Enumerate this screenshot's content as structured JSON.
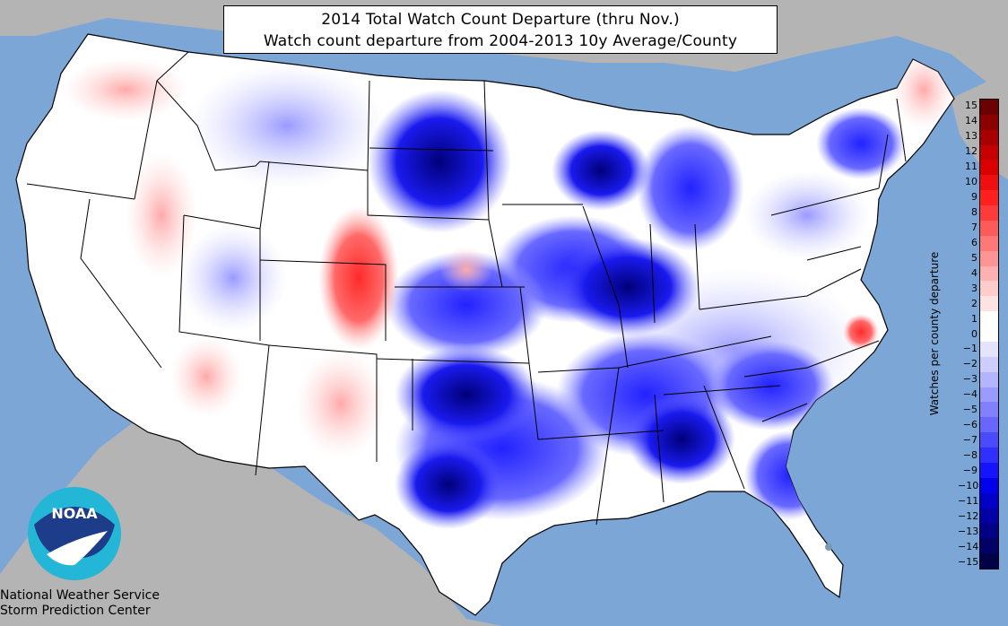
{
  "title": {
    "line1": "2014 Total Watch Count Departure (thru Nov.)",
    "line2": "Watch count departure from 2004-2013 10y Average/County"
  },
  "colorbar": {
    "label": "Watches per county departure",
    "ticks": [
      "15",
      "14",
      "13",
      "12",
      "11",
      "10",
      "9",
      "8",
      "7",
      "6",
      "5",
      "4",
      "3",
      "2",
      "1",
      "0",
      "−1",
      "−2",
      "−3",
      "−4",
      "−5",
      "−6",
      "−7",
      "−8",
      "−9",
      "−10",
      "−11",
      "−12",
      "−13",
      "−14",
      "−15"
    ],
    "colors": [
      "#6b0000",
      "#8b0000",
      "#a80000",
      "#c40000",
      "#db0000",
      "#ee1010",
      "#ff2020",
      "#ff3a3a",
      "#ff5a5a",
      "#ff7777",
      "#ff9494",
      "#ffb0b0",
      "#ffcccc",
      "#ffe2e2",
      "#ffffff",
      "#ffffff",
      "#e4e4ff",
      "#cdcdff",
      "#b4b4ff",
      "#9b9bff",
      "#8181ff",
      "#6767ff",
      "#4a4aff",
      "#2f2fff",
      "#1414ff",
      "#0000ea",
      "#0000c8",
      "#0000a6",
      "#000086",
      "#000066",
      "#000046"
    ]
  },
  "logo": {
    "text": "NOAA",
    "icon": "noaa-logo-icon"
  },
  "credit": {
    "line1": "National Weather Service",
    "line2": "Storm Prediction Center"
  },
  "colors": {
    "ocean": "#7ba6d6",
    "land_outside": "#b4b4b4",
    "state_border": "#000000"
  }
}
